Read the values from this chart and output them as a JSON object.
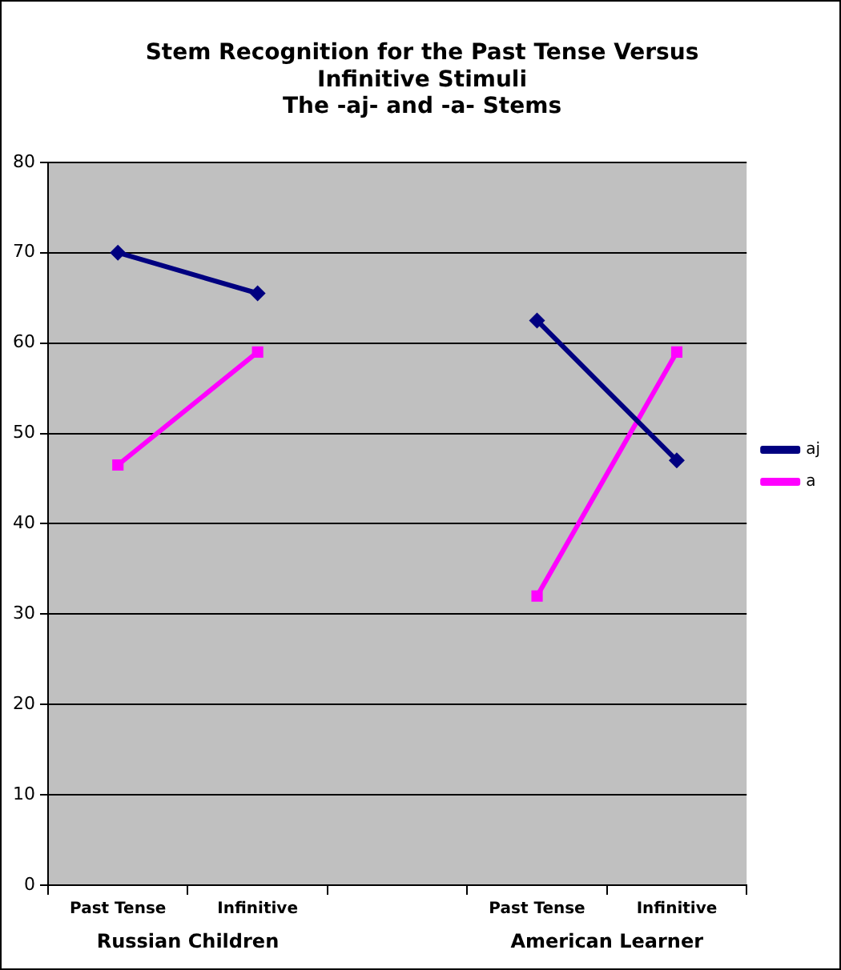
{
  "chart_data": {
    "type": "line",
    "title": "Stem Recognition for the Past Tense Versus\nInfinitive Stimuli\nThe -aj- and -a- Stems",
    "categories": [
      "Past Tense",
      "Infinitive",
      null,
      "Past Tense",
      "Infinitive"
    ],
    "series": [
      {
        "name": "aj",
        "color": "#000080",
        "marker": "diamond",
        "values": [
          70,
          65.5,
          null,
          62.5,
          47
        ]
      },
      {
        "name": "a",
        "color": "#ff00ff",
        "marker": "square",
        "values": [
          46.5,
          59,
          null,
          32,
          59
        ]
      }
    ],
    "annotations": [
      "Russian Children",
      "American Learner"
    ],
    "ylim": [
      0,
      80
    ],
    "yticks": [
      0,
      10,
      20,
      30,
      40,
      50,
      60,
      70,
      80
    ],
    "grid": "y",
    "legend": "right"
  }
}
